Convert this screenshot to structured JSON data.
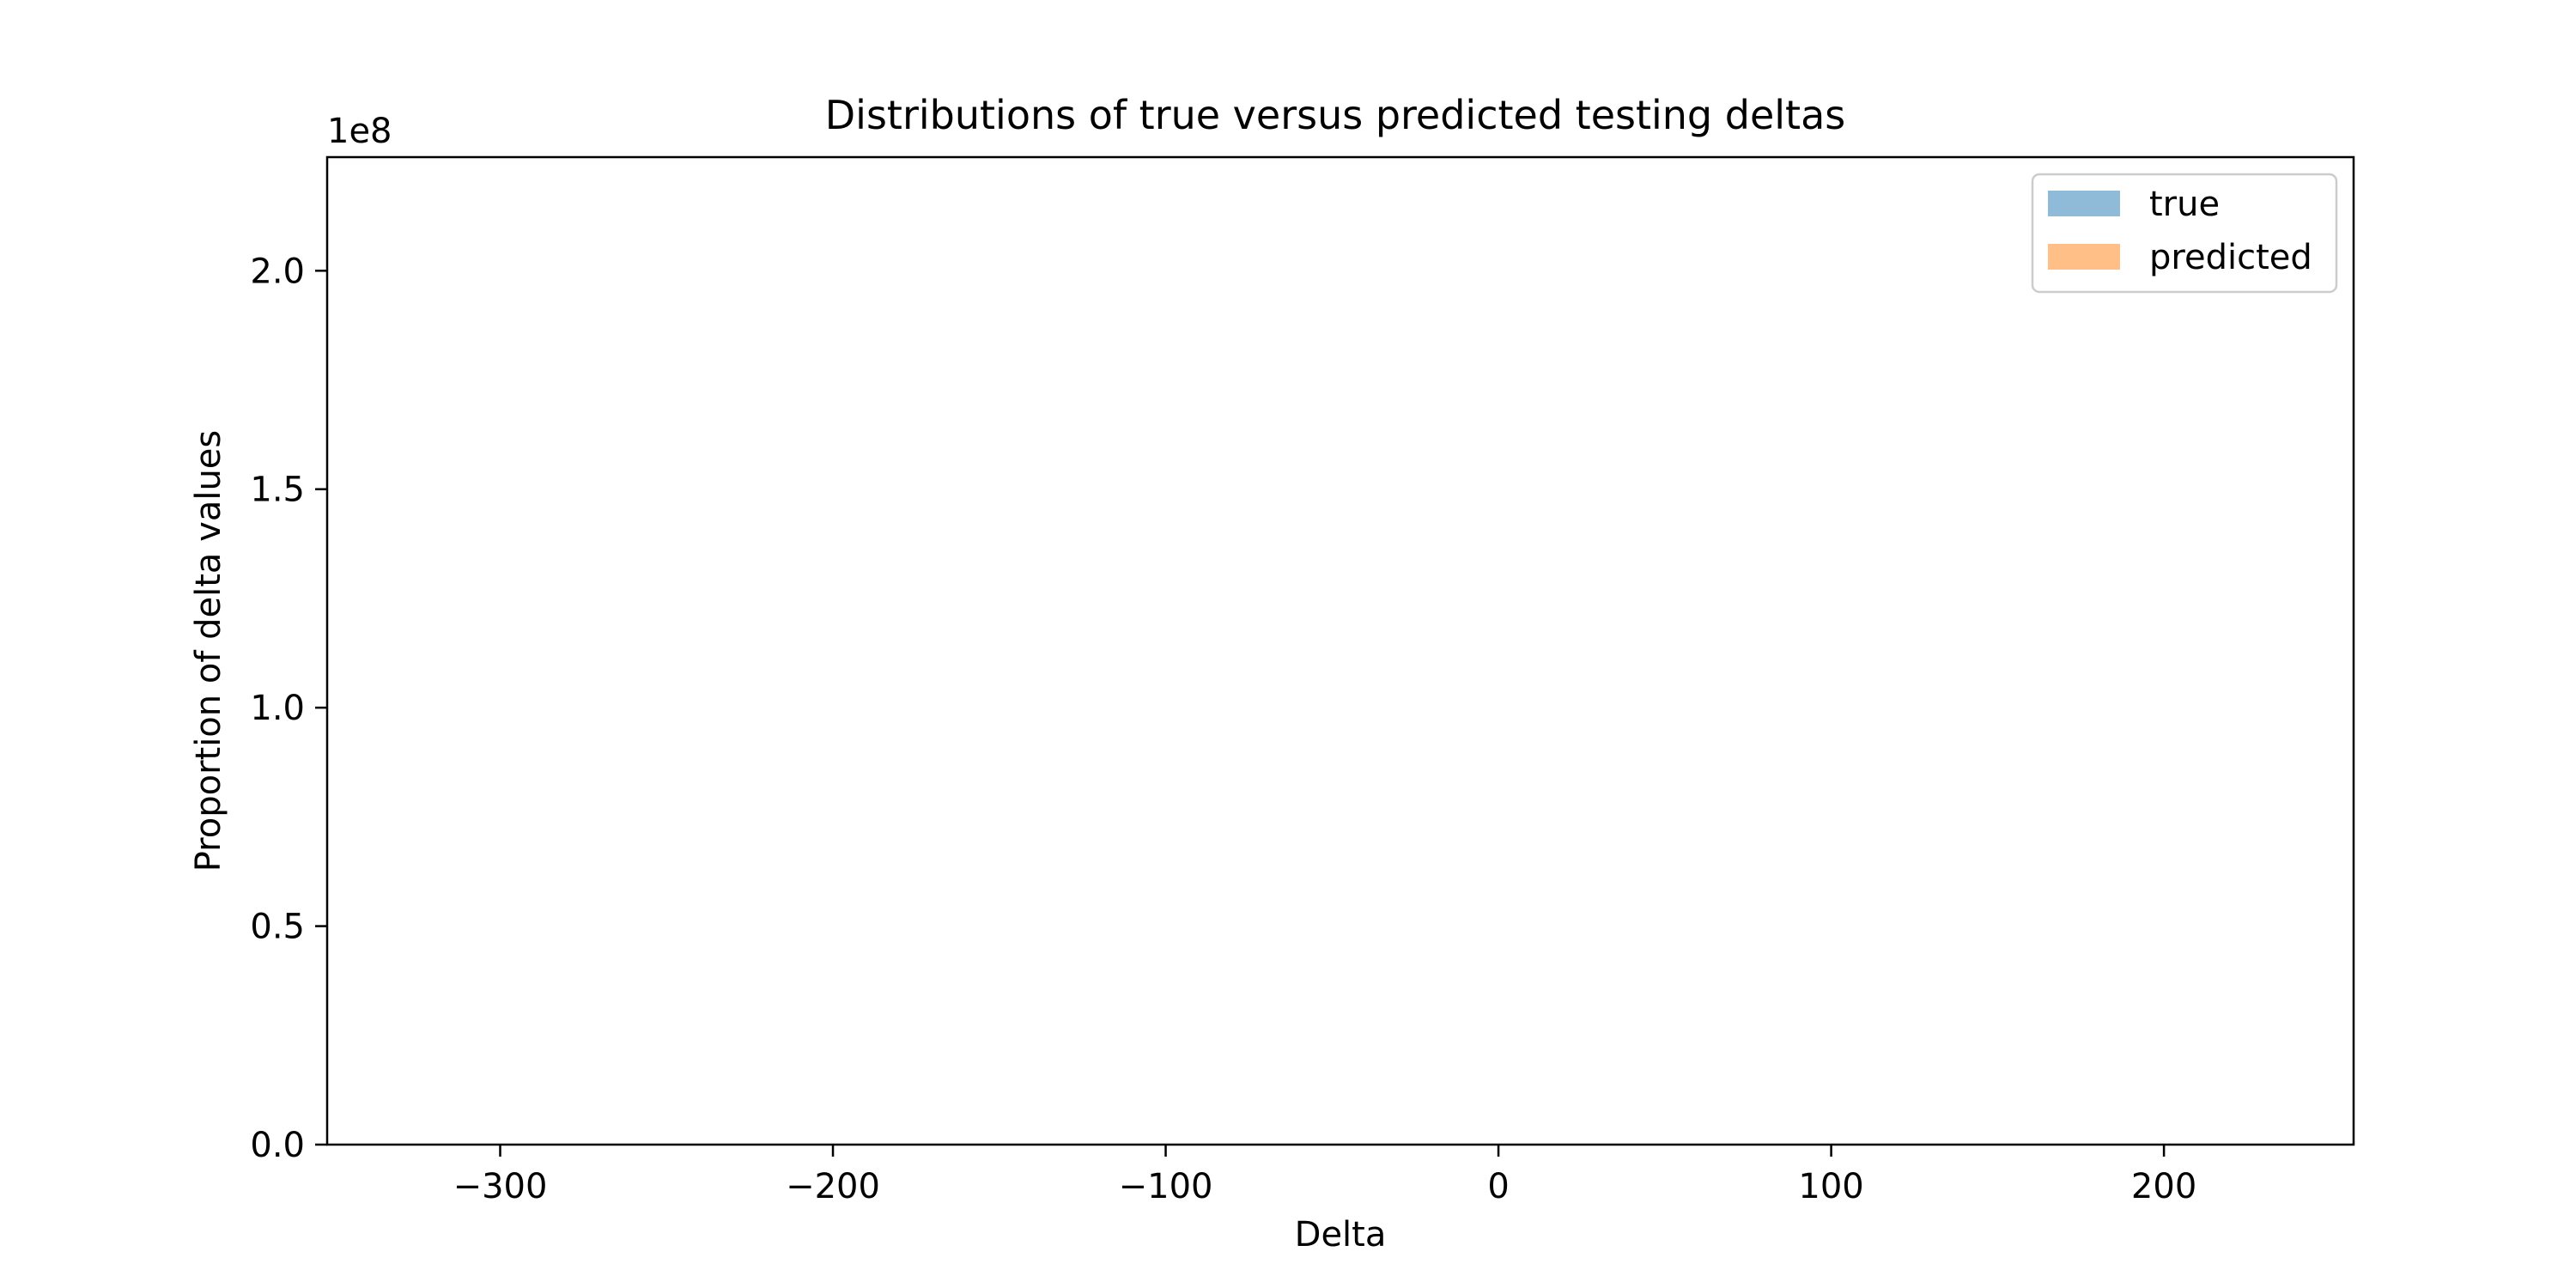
{
  "chart_data": {
    "type": "bar",
    "title": "Distributions of true versus predicted testing deltas",
    "xlabel": "Delta",
    "ylabel": "Proportion of delta values",
    "y_offset_label": "1e8",
    "xlim": [
      -352,
      257
    ],
    "ylim": [
      0,
      2.26
    ],
    "x_ticks": [
      {
        "value": -300,
        "label": "−300"
      },
      {
        "value": -200,
        "label": "−200"
      },
      {
        "value": -100,
        "label": "−100"
      },
      {
        "value": 0,
        "label": "0"
      },
      {
        "value": 100,
        "label": "100"
      },
      {
        "value": 200,
        "label": "200"
      }
    ],
    "y_ticks": [
      {
        "value": 0.0,
        "label": "0.0"
      },
      {
        "value": 0.5,
        "label": "0.5"
      },
      {
        "value": 1.0,
        "label": "1.0"
      },
      {
        "value": 1.5,
        "label": "1.5"
      },
      {
        "value": 2.0,
        "label": "2.0"
      }
    ],
    "series": [
      {
        "name": "true",
        "color": "#1f77b4",
        "opacity": 0.5,
        "values": []
      },
      {
        "name": "predicted",
        "color": "#ff7f0e",
        "opacity": 0.5,
        "values": []
      }
    ],
    "grid": false,
    "legend_position": "top-right"
  }
}
